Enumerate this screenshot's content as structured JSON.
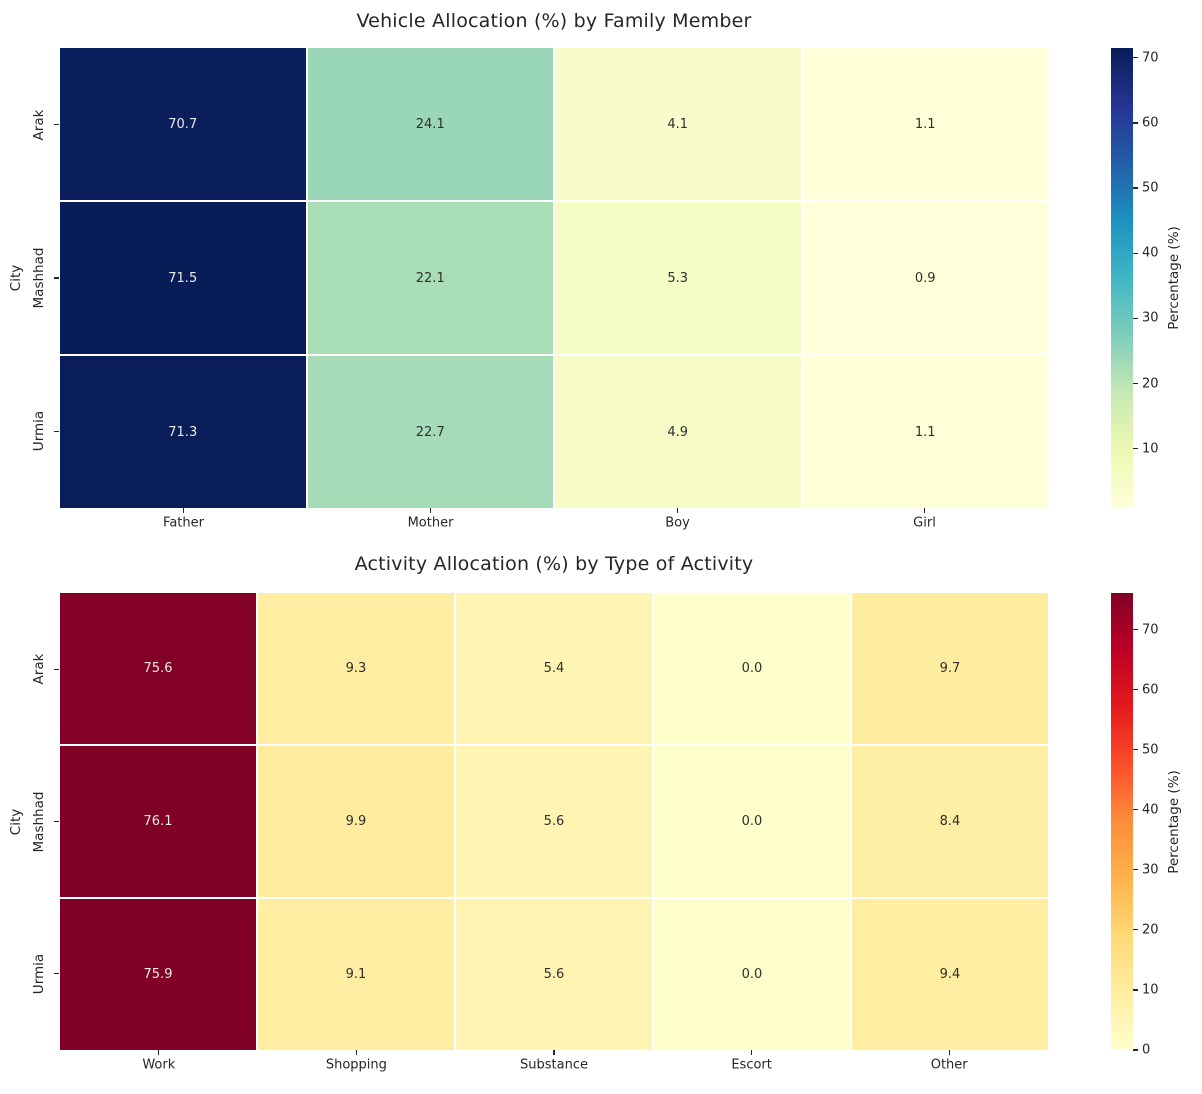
{
  "figure": {
    "background": "#ffffff",
    "text_color": "#262626"
  },
  "chart_data": [
    {
      "type": "heatmap",
      "title": "Vehicle Allocation (%) by Family Member",
      "ylabel": "City",
      "rows": [
        "Arak",
        "Mashhad",
        "Urmia"
      ],
      "columns": [
        "Father",
        "Mother",
        "Boy",
        "Girl"
      ],
      "values": [
        [
          70.7,
          24.1,
          4.1,
          1.1
        ],
        [
          71.5,
          22.1,
          5.3,
          0.9
        ],
        [
          71.3,
          22.7,
          4.9,
          1.1
        ]
      ],
      "annotation_decimals": 1,
      "colormap_name": "YlGnBu",
      "colormap_stops": [
        "#ffffd9",
        "#edf8b1",
        "#c7e9b4",
        "#7fcdbb",
        "#41b6c4",
        "#1d91c0",
        "#225ea8",
        "#253494",
        "#081d58"
      ],
      "vmin": 0.9,
      "vmax": 71.5,
      "gridline_color": "#ffffff",
      "colorbar": {
        "label": "Percentage (%)",
        "ticks": [
          10,
          20,
          30,
          40,
          50,
          60,
          70
        ],
        "position": "right"
      }
    },
    {
      "type": "heatmap",
      "title": "Activity Allocation (%) by Type of Activity",
      "ylabel": "City",
      "rows": [
        "Arak",
        "Mashhad",
        "Urmia"
      ],
      "columns": [
        "Work",
        "Shopping",
        "Substance",
        "Escort",
        "Other"
      ],
      "values": [
        [
          75.6,
          9.3,
          5.4,
          0.0,
          9.7
        ],
        [
          76.1,
          9.9,
          5.6,
          0.0,
          8.4
        ],
        [
          75.9,
          9.1,
          5.6,
          0.0,
          9.4
        ]
      ],
      "annotation_decimals": 1,
      "colormap_name": "YlOrRd",
      "colormap_stops": [
        "#ffffcc",
        "#ffeda0",
        "#fed976",
        "#feb24c",
        "#fd8d3c",
        "#fc4e2a",
        "#e31a1c",
        "#bd0026",
        "#800026"
      ],
      "vmin": 0.0,
      "vmax": 76.1,
      "gridline_color": "#ffffff",
      "colorbar": {
        "label": "Percentage (%)",
        "ticks": [
          0,
          10,
          20,
          30,
          40,
          50,
          60,
          70
        ],
        "position": "right"
      }
    }
  ]
}
